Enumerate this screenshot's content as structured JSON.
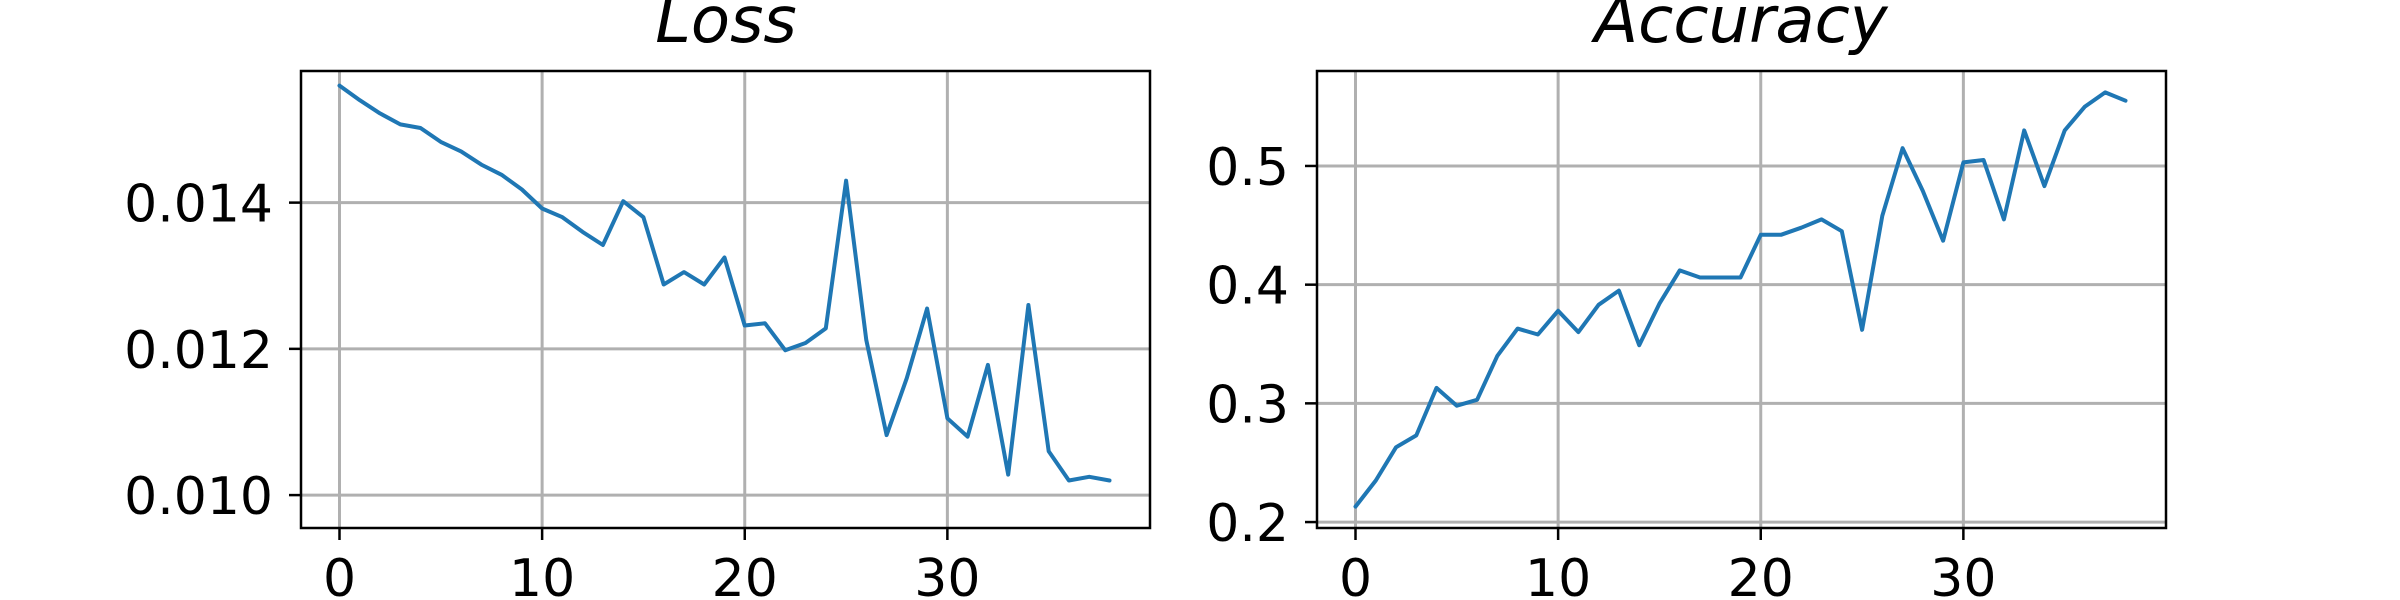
{
  "colors": {
    "series": "#1f77b4",
    "grid": "#b0b0b0",
    "axes": "#000000"
  },
  "chart_data": [
    {
      "type": "line",
      "title": "Loss",
      "xlabel": "",
      "ylabel": "",
      "grid": true,
      "xlim": [
        -1.9,
        40
      ],
      "ylim": [
        0.00955,
        0.0158
      ],
      "xticks": [
        0,
        10,
        20,
        30
      ],
      "xtick_labels": [
        "0",
        "10",
        "20",
        "30"
      ],
      "yticks": [
        0.01,
        0.012,
        0.014
      ],
      "ytick_labels": [
        "0.010",
        "0.012",
        "0.014"
      ],
      "x": [
        0,
        1,
        2,
        3,
        4,
        5,
        6,
        7,
        8,
        9,
        10,
        11,
        12,
        13,
        14,
        15,
        16,
        17,
        18,
        19,
        20,
        21,
        22,
        23,
        24,
        25,
        26,
        27,
        28,
        29,
        30,
        31,
        32,
        33,
        34,
        35,
        36,
        37,
        38
      ],
      "values": [
        0.0156,
        0.0154,
        0.01522,
        0.01507,
        0.01502,
        0.01483,
        0.0147,
        0.01452,
        0.01438,
        0.01418,
        0.01392,
        0.0138,
        0.0136,
        0.01342,
        0.01402,
        0.0138,
        0.01288,
        0.01305,
        0.01288,
        0.01325,
        0.01232,
        0.01235,
        0.01198,
        0.01208,
        0.01228,
        0.0143,
        0.01212,
        0.01082,
        0.0116,
        0.01255,
        0.01105,
        0.0108,
        0.01178,
        0.01028,
        0.0126,
        0.0106,
        0.0102,
        0.01025,
        0.0102
      ]
    },
    {
      "type": "line",
      "title": "Accuracy",
      "xlabel": "",
      "ylabel": "",
      "grid": true,
      "xlim": [
        -1.9,
        40
      ],
      "ylim": [
        0.195,
        0.58
      ],
      "xticks": [
        0,
        10,
        20,
        30
      ],
      "xtick_labels": [
        "0",
        "10",
        "20",
        "30"
      ],
      "yticks": [
        0.2,
        0.3,
        0.4,
        0.5
      ],
      "ytick_labels": [
        "0.2",
        "0.3",
        "0.4",
        "0.5"
      ],
      "x": [
        0,
        1,
        2,
        3,
        4,
        5,
        6,
        7,
        8,
        9,
        10,
        11,
        12,
        13,
        14,
        15,
        16,
        17,
        18,
        19,
        20,
        21,
        22,
        23,
        24,
        25,
        26,
        27,
        28,
        29,
        30,
        31,
        32,
        33,
        34,
        35,
        36,
        37,
        38
      ],
      "values": [
        0.213,
        0.235,
        0.263,
        0.273,
        0.313,
        0.298,
        0.303,
        0.34,
        0.363,
        0.358,
        0.378,
        0.36,
        0.383,
        0.395,
        0.349,
        0.384,
        0.412,
        0.406,
        0.406,
        0.406,
        0.442,
        0.442,
        0.448,
        0.455,
        0.445,
        0.362,
        0.458,
        0.515,
        0.479,
        0.437,
        0.503,
        0.505,
        0.455,
        0.53,
        0.483,
        0.53,
        0.55,
        0.562,
        0.555
      ]
    }
  ]
}
